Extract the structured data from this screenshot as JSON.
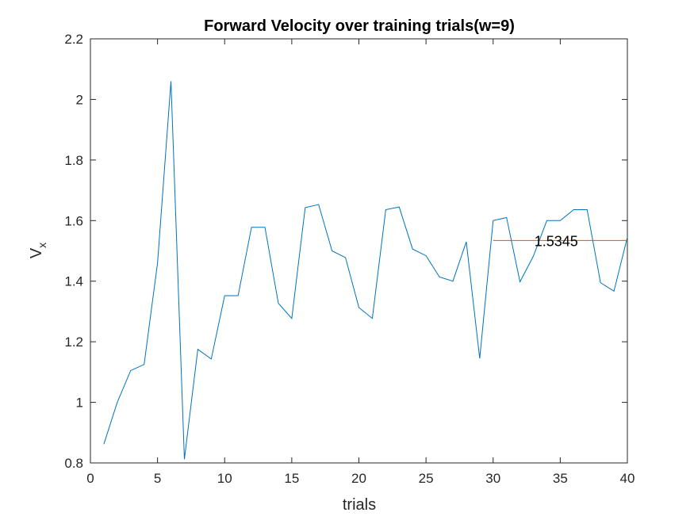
{
  "chart_data": {
    "type": "line",
    "title": "Forward Velocity over training trials(w=9)",
    "xlabel": "trials",
    "ylabel": {
      "main": "V",
      "subscript": "x"
    },
    "xlim": [
      0,
      40
    ],
    "ylim": [
      0.8,
      2.2
    ],
    "xticks": [
      0,
      5,
      10,
      15,
      20,
      25,
      30,
      35,
      40
    ],
    "yticks": [
      0.8,
      1,
      1.2,
      1.4,
      1.6,
      1.8,
      2,
      2.2
    ],
    "xtick_labels": [
      "0",
      "5",
      "10",
      "15",
      "20",
      "25",
      "30",
      "35",
      "40"
    ],
    "ytick_labels": [
      "0.8",
      "1",
      "1.2",
      "1.4",
      "1.6",
      "1.8",
      "2",
      "2.2"
    ],
    "grid": false,
    "box": true,
    "series": [
      {
        "color": "#0072BD",
        "x": [
          1,
          2,
          3,
          4,
          5,
          6,
          7,
          8,
          9,
          10,
          11,
          12,
          13,
          14,
          15,
          16,
          17,
          18,
          19,
          20,
          21,
          22,
          23,
          24,
          25,
          26,
          27,
          28,
          29,
          30,
          31,
          32,
          33,
          34,
          35,
          36,
          37,
          38,
          39,
          40
        ],
        "y": [
          0.862,
          1.0,
          1.105,
          1.125,
          1.46,
          2.06,
          0.812,
          1.175,
          1.143,
          1.352,
          1.352,
          1.578,
          1.578,
          1.327,
          1.277,
          1.643,
          1.653,
          1.5,
          1.478,
          1.313,
          1.277,
          1.636,
          1.645,
          1.506,
          1.484,
          1.414,
          1.4,
          1.53,
          1.145,
          1.6,
          1.61,
          1.398,
          1.483,
          1.6,
          1.6,
          1.636,
          1.636,
          1.395,
          1.367,
          1.545
        ]
      },
      {
        "color": "#D95319",
        "x": [
          30,
          40
        ],
        "y": [
          1.5345,
          1.5345
        ]
      }
    ],
    "annotations": [
      {
        "text": "1.5345",
        "x": 34.7,
        "y": 1.5345
      }
    ],
    "axis_color": "#262626",
    "background": "#ffffff"
  }
}
